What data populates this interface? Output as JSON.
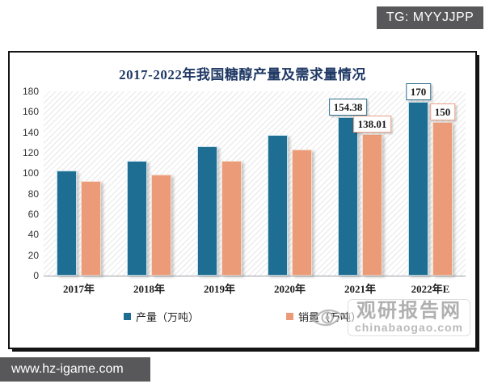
{
  "watermarks": {
    "tg": "TG: MYYJJPP",
    "site": "www.hz-igame.com",
    "brand_cn": "观研报告网",
    "brand_url": "chinabaogao.com"
  },
  "chart_data": {
    "type": "bar",
    "title": "2017-2022年我国糖醇产量及需求量情况",
    "categories": [
      "2017年",
      "2018年",
      "2019年",
      "2020年",
      "2021年",
      "2022年E"
    ],
    "series": [
      {
        "name": "产量（万吨）",
        "color": "#1e6e93",
        "label_border": "#2e6e8e",
        "values": [
          103,
          112,
          126,
          137,
          154.38,
          170
        ],
        "labels": [
          null,
          null,
          null,
          null,
          "154.38",
          "170"
        ]
      },
      {
        "name": "销量（万吨）",
        "color": "#ec9b78",
        "label_border": "#e9a085",
        "values": [
          92,
          99,
          112,
          123,
          138.01,
          150
        ],
        "labels": [
          null,
          null,
          null,
          null,
          "138.01",
          "150"
        ]
      }
    ],
    "ylabel": "",
    "xlabel": "",
    "ylim": [
      0,
      180
    ],
    "ytick_step": 20,
    "grid": false,
    "legend_position": "bottom",
    "plot_background": "diagonal-hatch"
  }
}
